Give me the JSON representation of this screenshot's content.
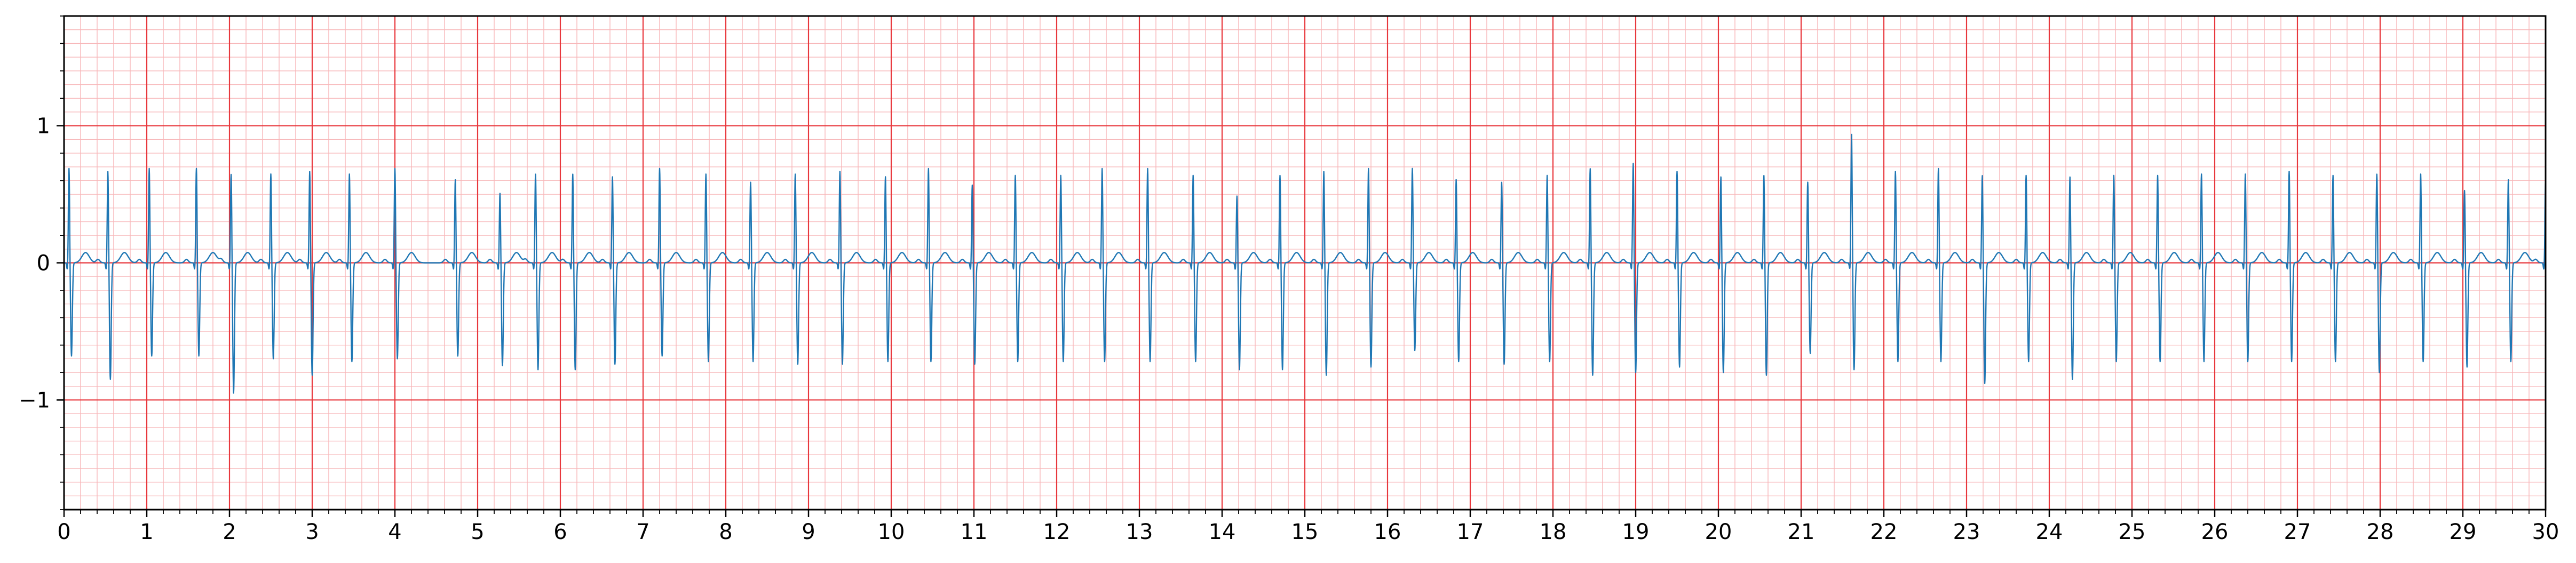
{
  "chart_data": {
    "type": "line",
    "title": "",
    "xlabel": "",
    "ylabel": "",
    "xlim": [
      0,
      30
    ],
    "ylim": [
      -1.8,
      1.8
    ],
    "x_ticks": [
      0,
      1,
      2,
      3,
      4,
      5,
      6,
      7,
      8,
      9,
      10,
      11,
      12,
      13,
      14,
      15,
      16,
      17,
      18,
      19,
      20,
      21,
      22,
      23,
      24,
      25,
      26,
      27,
      28,
      29,
      30
    ],
    "x_tick_labels": [
      "0",
      "1",
      "2",
      "3",
      "4",
      "5",
      "6",
      "7",
      "8",
      "9",
      "10",
      "11",
      "12",
      "13",
      "14",
      "15",
      "16",
      "17",
      "18",
      "19",
      "20",
      "21",
      "22",
      "23",
      "24",
      "25",
      "26",
      "27",
      "28",
      "29",
      "30"
    ],
    "y_ticks": [
      -1,
      0,
      1
    ],
    "y_tick_labels": [
      "−1",
      "0",
      "1"
    ],
    "x_minor_step": 0.2,
    "y_minor_step": 0.1,
    "grid": true,
    "grid_major_color": "#e8383d",
    "grid_minor_color": "#f7b7b9",
    "line_color": "#1f77b4",
    "series": [
      {
        "r_peaks": [
          0.06,
          0.53,
          1.03,
          1.6,
          2.02,
          2.5,
          2.97,
          3.45,
          4.0,
          4.73,
          5.27,
          5.7,
          6.15,
          6.63,
          7.2,
          7.76,
          8.3,
          8.84,
          9.38,
          9.93,
          10.45,
          10.98,
          11.5,
          12.05,
          12.55,
          13.1,
          13.65,
          14.18,
          14.7,
          15.23,
          15.77,
          16.3,
          16.83,
          17.38,
          17.93,
          18.45,
          18.97,
          19.5,
          20.03,
          20.55,
          21.08,
          21.61,
          22.14,
          22.66,
          23.19,
          23.72,
          24.25,
          24.78,
          25.31,
          25.84,
          26.37,
          26.9,
          27.43,
          27.96,
          28.49,
          29.02,
          29.55,
          30.0
        ],
        "r_amplitudes": [
          0.7,
          0.68,
          0.7,
          0.7,
          0.66,
          0.66,
          0.68,
          0.66,
          0.7,
          0.62,
          0.52,
          0.66,
          0.66,
          0.64,
          0.7,
          0.66,
          0.6,
          0.66,
          0.68,
          0.64,
          0.7,
          0.58,
          0.65,
          0.65,
          0.7,
          0.7,
          0.65,
          0.5,
          0.65,
          0.68,
          0.7,
          0.7,
          0.62,
          0.6,
          0.65,
          0.7,
          0.74,
          0.68,
          0.64,
          0.65,
          0.6,
          0.95,
          0.68,
          0.7,
          0.65,
          0.65,
          0.64,
          0.65,
          0.65,
          0.66,
          0.66,
          0.68,
          0.65,
          0.66,
          0.66,
          0.54,
          0.62,
          0.62
        ],
        "s_amplitudes": [
          -0.68,
          -0.85,
          -0.68,
          -0.68,
          -0.95,
          -0.7,
          -0.82,
          -0.72,
          -0.7,
          -0.68,
          -0.75,
          -0.78,
          -0.78,
          -0.74,
          -0.68,
          -0.72,
          -0.72,
          -0.74,
          -0.74,
          -0.72,
          -0.72,
          -0.74,
          -0.72,
          -0.72,
          -0.72,
          -0.72,
          -0.72,
          -0.78,
          -0.78,
          -0.82,
          -0.76,
          -0.64,
          -0.72,
          -0.74,
          -0.72,
          -0.82,
          -0.8,
          -0.76,
          -0.8,
          -0.82,
          -0.66,
          -0.78,
          -0.72,
          -0.72,
          -0.88,
          -0.72,
          -0.85,
          -0.72,
          -0.72,
          -0.72,
          -0.72,
          -0.72,
          -0.72,
          -0.8,
          -0.72,
          -0.76,
          -0.72,
          -0.72
        ]
      }
    ]
  }
}
